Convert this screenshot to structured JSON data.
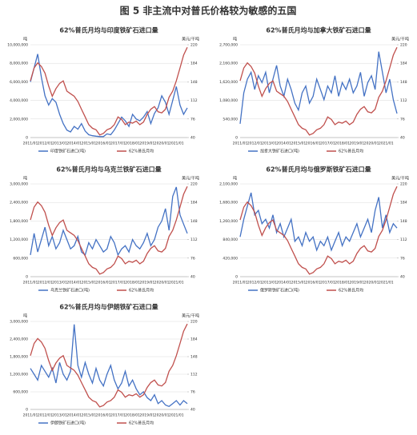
{
  "title": "图 5 非主流中对普氏价格较为敏感的五国",
  "chart_data": [
    {
      "type": "line",
      "title": "62%普氏月均与印度铁矿石进口量",
      "ylabel": "吨",
      "y2label": "美元/干吨",
      "categories": [
        "2011/01",
        null,
        null,
        null,
        "2012/01",
        null,
        null,
        null,
        "2013/01",
        null,
        null,
        null,
        "2014/01",
        null,
        null,
        null,
        "2015/01",
        null,
        null,
        null,
        "2016/01",
        null,
        null,
        null,
        "2017/01",
        null,
        null,
        null,
        "2018/01",
        null,
        null,
        null,
        "2019/01",
        null,
        null,
        null,
        "2020/01",
        null,
        null,
        null,
        "2021/01",
        null,
        null,
        null
      ],
      "ylim": [
        0,
        10000000
      ],
      "yticks": [
        0,
        {
          "value": 2000000,
          "label": "2,000,000"
        },
        {
          "value": 4000000,
          "label": "4,000,000"
        },
        {
          "value": 6000000,
          "label": "6,000,000"
        },
        {
          "value": 8000000,
          "label": "8,000,000"
        },
        {
          "value": 10000000,
          "label": "10,000,000"
        }
      ],
      "y2lim": [
        40,
        220
      ],
      "y2ticks": [
        40,
        76,
        112,
        148,
        184,
        220
      ],
      "series": [
        {
          "name": "印度铁矿石进口(吨)",
          "color": "#4472c4",
          "values": [
            6000000,
            7500000,
            9000000,
            6500000,
            4500000,
            3500000,
            4200000,
            3800000,
            2500000,
            1500000,
            800000,
            600000,
            1200000,
            900000,
            1500000,
            700000,
            300000,
            200000,
            150000,
            100000,
            100000,
            400000,
            300000,
            800000,
            1500000,
            2200000,
            1800000,
            1200000,
            2500000,
            2000000,
            1800000,
            2200000,
            2800000,
            1500000,
            2600000,
            3200000,
            4500000,
            3800000,
            2500000,
            4000000,
            5500000,
            3500000,
            2500000,
            3200000
          ]
        },
        {
          "name": "62%普氏月均",
          "color": "#c0504d",
          "axis": "y2",
          "values": [
            150,
            175,
            185,
            178,
            165,
            140,
            120,
            135,
            145,
            150,
            130,
            125,
            120,
            110,
            95,
            80,
            65,
            58,
            55,
            45,
            48,
            55,
            58,
            65,
            80,
            75,
            65,
            70,
            68,
            72,
            65,
            70,
            85,
            95,
            100,
            90,
            88,
            95,
            118,
            130,
            150,
            175,
            200,
            215
          ]
        }
      ]
    },
    {
      "type": "line",
      "title": "62%普氏月均与加拿大铁矿石进口量",
      "ylabel": "吨",
      "y2label": "美元/干吨",
      "categories": [
        "2011/01",
        null,
        null,
        null,
        "2012/01",
        null,
        null,
        null,
        "2013/01",
        null,
        null,
        null,
        "2014/01",
        null,
        null,
        null,
        "2015/01",
        null,
        null,
        null,
        "2016/01",
        null,
        null,
        null,
        "2017/01",
        null,
        null,
        null,
        "2018/01",
        null,
        null,
        null,
        "2019/01",
        null,
        null,
        null,
        "2020/01",
        null,
        null,
        null,
        "2021/01",
        null,
        null,
        null
      ],
      "ylim": [
        0,
        2700000
      ],
      "yticks": [
        0,
        {
          "value": 540000,
          "label": "540,000"
        },
        {
          "value": 1080000,
          "label": "1,080,000"
        },
        {
          "value": 1620000,
          "label": "1,620,000"
        },
        {
          "value": 2160000,
          "label": "2,160,000"
        },
        {
          "value": 2700000,
          "label": "2,700,000"
        }
      ],
      "y2lim": [
        40,
        220
      ],
      "y2ticks": [
        40,
        76,
        112,
        148,
        184,
        220
      ],
      "series": [
        {
          "name": "加拿大铁矿石进口(吨)",
          "color": "#4472c4",
          "values": [
            400000,
            1300000,
            1700000,
            1900000,
            1400000,
            1800000,
            1600000,
            1900000,
            1300000,
            1700000,
            2100000,
            1500000,
            1200000,
            1700000,
            1400000,
            1000000,
            800000,
            1300000,
            1500000,
            1000000,
            1200000,
            1700000,
            1400000,
            1100000,
            1500000,
            1300000,
            1800000,
            1200000,
            1600000,
            1400000,
            1700000,
            1300000,
            1500000,
            1900000,
            1200000,
            1600000,
            1800000,
            1400000,
            2500000,
            1900000,
            1300000,
            1700000,
            1100000,
            700000
          ]
        },
        {
          "name": "62%普氏月均",
          "color": "#c0504d",
          "axis": "y2",
          "values": [
            150,
            175,
            185,
            178,
            165,
            140,
            120,
            135,
            145,
            150,
            130,
            125,
            120,
            110,
            95,
            80,
            65,
            58,
            55,
            45,
            48,
            55,
            58,
            65,
            80,
            75,
            65,
            70,
            68,
            72,
            65,
            70,
            85,
            95,
            100,
            90,
            88,
            95,
            118,
            130,
            150,
            175,
            200,
            215
          ]
        }
      ]
    },
    {
      "type": "line",
      "title": "62%普氏月均与乌克兰铁矿石进口量",
      "ylabel": "吨",
      "y2label": "美元/干吨",
      "categories": [
        "2011/01",
        null,
        null,
        null,
        "2012/01",
        null,
        null,
        null,
        "2013/01",
        null,
        null,
        null,
        "2014/01",
        null,
        null,
        null,
        "2015/01",
        null,
        null,
        null,
        "2016/01",
        null,
        null,
        null,
        "2017/01",
        null,
        null,
        null,
        "2018/01",
        null,
        null,
        null,
        "2019/01",
        null,
        null,
        null,
        "2020/01",
        null,
        null,
        null,
        "2021/01",
        null,
        null,
        null
      ],
      "ylim": [
        0,
        3000000
      ],
      "yticks": [
        0,
        {
          "value": 600000,
          "label": "600,000"
        },
        {
          "value": 1200000,
          "label": "1,200,000"
        },
        {
          "value": 1800000,
          "label": "1,800,000"
        },
        {
          "value": 2400000,
          "label": "2,400,000"
        },
        {
          "value": 3000000,
          "label": "3,000,000"
        }
      ],
      "y2lim": [
        40,
        220
      ],
      "y2ticks": [
        40,
        76,
        112,
        148,
        184,
        220
      ],
      "series": [
        {
          "name": "乌克兰铁矿石进口(吨)",
          "color": "#4472c4",
          "values": [
            700000,
            1400000,
            800000,
            1200000,
            1600000,
            1000000,
            1300000,
            900000,
            1100000,
            1500000,
            1200000,
            900000,
            1000000,
            1300000,
            800000,
            700000,
            1100000,
            900000,
            1200000,
            1000000,
            800000,
            900000,
            1300000,
            1100000,
            700000,
            900000,
            1000000,
            800000,
            1200000,
            1000000,
            900000,
            1100000,
            1400000,
            1000000,
            1200000,
            1600000,
            1800000,
            2200000,
            1500000,
            2600000,
            2900000,
            2000000,
            1700000,
            1400000
          ]
        },
        {
          "name": "62%普氏月均",
          "color": "#c0504d",
          "axis": "y2",
          "values": [
            150,
            175,
            185,
            178,
            165,
            140,
            120,
            135,
            145,
            150,
            130,
            125,
            120,
            110,
            95,
            80,
            65,
            58,
            55,
            45,
            48,
            55,
            58,
            65,
            80,
            75,
            65,
            70,
            68,
            72,
            65,
            70,
            85,
            95,
            100,
            90,
            88,
            95,
            118,
            130,
            150,
            175,
            200,
            215
          ]
        }
      ]
    },
    {
      "type": "line",
      "title": "62%普氏月均与俄罗斯铁矿石进口量",
      "ylabel": "吨",
      "y2label": "美元/干吨",
      "categories": [
        "2011/01",
        null,
        null,
        null,
        "2012/01",
        null,
        null,
        null,
        "2013/01",
        null,
        null,
        null,
        "2014/01",
        null,
        null,
        null,
        "2015/01",
        null,
        null,
        null,
        "2016/01",
        null,
        null,
        null,
        "2017/01",
        null,
        null,
        null,
        "2018/01",
        null,
        null,
        null,
        "2019/01",
        null,
        null,
        null,
        "2020/01",
        null,
        null,
        null,
        "2021/01",
        null,
        null,
        null
      ],
      "ylim": [
        0,
        2100000
      ],
      "yticks": [
        0,
        {
          "value": 420000,
          "label": "420,000"
        },
        {
          "value": 840000,
          "label": "840,000"
        },
        {
          "value": 1260000,
          "label": "1,260,000"
        },
        {
          "value": 1680000,
          "label": "1,680,000"
        },
        {
          "value": 2100000,
          "label": "2,100,000"
        }
      ],
      "y2lim": [
        40,
        220
      ],
      "y2ticks": [
        40,
        76,
        112,
        148,
        184,
        220
      ],
      "series": [
        {
          "name": "俄罗斯铁矿石进口(吨)",
          "color": "#4472c4",
          "values": [
            900000,
            1300000,
            1600000,
            1900000,
            1400000,
            1500000,
            1200000,
            1300000,
            1100000,
            1400000,
            1000000,
            1200000,
            900000,
            1100000,
            1300000,
            800000,
            900000,
            700000,
            1000000,
            800000,
            900000,
            600000,
            800000,
            700000,
            900000,
            600000,
            800000,
            1000000,
            700000,
            900000,
            800000,
            1000000,
            1200000,
            900000,
            1100000,
            1300000,
            1000000,
            1500000,
            1800000,
            1100000,
            1400000,
            1000000,
            1200000,
            1100000
          ]
        },
        {
          "name": "62%普氏月均",
          "color": "#c0504d",
          "axis": "y2",
          "values": [
            150,
            175,
            185,
            178,
            165,
            140,
            120,
            135,
            145,
            150,
            130,
            125,
            120,
            110,
            95,
            80,
            65,
            58,
            55,
            45,
            48,
            55,
            58,
            65,
            80,
            75,
            65,
            70,
            68,
            72,
            65,
            70,
            85,
            95,
            100,
            90,
            88,
            95,
            118,
            130,
            150,
            175,
            200,
            215
          ]
        }
      ]
    },
    {
      "type": "line",
      "title": "62%普氏月均与伊朗铁矿石进口量",
      "ylabel": "吨",
      "y2label": "美元/干吨",
      "categories": [
        "2011/01",
        null,
        null,
        null,
        "2012/01",
        null,
        null,
        null,
        "2013/01",
        null,
        null,
        null,
        "2014/01",
        null,
        null,
        null,
        "2015/01",
        null,
        null,
        null,
        "2016/01",
        null,
        null,
        null,
        "2017/01",
        null,
        null,
        null,
        "2018/01",
        null,
        null,
        null,
        "2019/01",
        null,
        null,
        null,
        "2020/01",
        null,
        null,
        null,
        "2021/01",
        null,
        null,
        null
      ],
      "ylim": [
        0,
        3000000
      ],
      "yticks": [
        0,
        {
          "value": 600000,
          "label": "600,000"
        },
        {
          "value": 1200000,
          "label": "1,200,000"
        },
        {
          "value": 1800000,
          "label": "1,800,000"
        },
        {
          "value": 2400000,
          "label": "2,400,000"
        },
        {
          "value": 3000000,
          "label": "3,000,000"
        }
      ],
      "y2lim": [
        40,
        220
      ],
      "y2ticks": [
        40,
        76,
        112,
        148,
        184,
        220
      ],
      "series": [
        {
          "name": "伊朗铁矿石进口(吨)",
          "color": "#4472c4",
          "values": [
            1400000,
            1200000,
            1000000,
            1500000,
            1300000,
            1100000,
            1400000,
            900000,
            1600000,
            1200000,
            1000000,
            1300000,
            2900000,
            1500000,
            1100000,
            1600000,
            1200000,
            900000,
            1400000,
            1000000,
            800000,
            1200000,
            1500000,
            1000000,
            700000,
            900000,
            1300000,
            800000,
            1000000,
            700000,
            500000,
            600000,
            400000,
            300000,
            500000,
            200000,
            300000,
            150000,
            100000,
            200000,
            300000,
            150000,
            300000,
            200000
          ]
        },
        {
          "name": "62%普氏月均",
          "color": "#c0504d",
          "axis": "y2",
          "values": [
            150,
            175,
            185,
            178,
            165,
            140,
            120,
            135,
            145,
            150,
            130,
            125,
            120,
            110,
            95,
            80,
            65,
            58,
            55,
            45,
            48,
            55,
            58,
            65,
            80,
            75,
            65,
            70,
            68,
            72,
            65,
            70,
            85,
            95,
            100,
            90,
            88,
            95,
            118,
            130,
            150,
            175,
            200,
            215
          ]
        }
      ]
    }
  ]
}
